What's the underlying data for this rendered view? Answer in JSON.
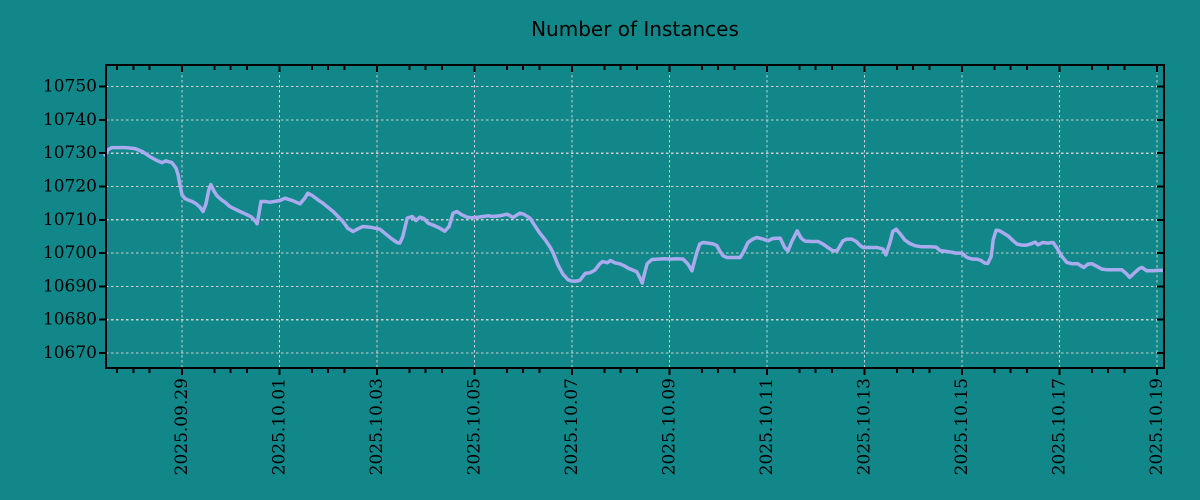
{
  "title": "Number of Instances",
  "colors": {
    "background": "#12878A",
    "line": "#AAAAEE",
    "grid": "#CFCFCF",
    "axis": "#000000",
    "text": "#000000"
  },
  "chart_data": {
    "type": "line",
    "title": "Number of Instances",
    "xlabel": "",
    "ylabel": "",
    "grid": true,
    "legend": "none",
    "x_axis": {
      "unit": "days since 2025-09-27 00:00",
      "lim_days": [
        0.441,
        22.144
      ],
      "major_ticks": [
        {
          "day": 2,
          "label": "2025.09.29"
        },
        {
          "day": 4,
          "label": "2025.10.01"
        },
        {
          "day": 6,
          "label": "2025.10.03"
        },
        {
          "day": 8,
          "label": "2025.10.05"
        },
        {
          "day": 10,
          "label": "2025.10.07"
        },
        {
          "day": 12,
          "label": "2025.10.09"
        },
        {
          "day": 14,
          "label": "2025.10.11"
        },
        {
          "day": 16,
          "label": "2025.10.13"
        },
        {
          "day": 18,
          "label": "2025.10.15"
        },
        {
          "day": 20,
          "label": "2025.10.17"
        },
        {
          "day": 22,
          "label": "2025.10.19"
        }
      ],
      "minor_step_days": 0.3333333
    },
    "y_axis": {
      "lim": [
        10665.5,
        10756.5
      ],
      "ticks": [
        10670,
        10680,
        10690,
        10700,
        10710,
        10720,
        10730,
        10740,
        10750
      ]
    },
    "series": [
      {
        "name": "instances",
        "color": "#AAAAEE",
        "points": [
          [
            0.42,
            10729.5
          ],
          [
            0.48,
            10731.0
          ],
          [
            0.56,
            10731.7
          ],
          [
            0.83,
            10731.7
          ],
          [
            1.04,
            10731.4
          ],
          [
            1.2,
            10730.4
          ],
          [
            1.34,
            10729.0
          ],
          [
            1.49,
            10727.8
          ],
          [
            1.59,
            10727.2
          ],
          [
            1.67,
            10727.7
          ],
          [
            1.79,
            10727.2
          ],
          [
            1.88,
            10725.5
          ],
          [
            1.92,
            10723.5
          ],
          [
            1.96,
            10720.5
          ],
          [
            2.0,
            10717.5
          ],
          [
            2.06,
            10716.4
          ],
          [
            2.12,
            10716.0
          ],
          [
            2.21,
            10715.5
          ],
          [
            2.29,
            10714.8
          ],
          [
            2.37,
            10713.8
          ],
          [
            2.43,
            10712.5
          ],
          [
            2.49,
            10714.7
          ],
          [
            2.55,
            10719.0
          ],
          [
            2.59,
            10720.6
          ],
          [
            2.66,
            10718.5
          ],
          [
            2.72,
            10717.2
          ],
          [
            2.8,
            10716.1
          ],
          [
            2.88,
            10715.3
          ],
          [
            2.98,
            10714.0
          ],
          [
            3.09,
            10713.2
          ],
          [
            3.19,
            10712.5
          ],
          [
            3.31,
            10711.7
          ],
          [
            3.42,
            10710.9
          ],
          [
            3.5,
            10709.7
          ],
          [
            3.54,
            10708.8
          ],
          [
            3.58,
            10712.0
          ],
          [
            3.62,
            10715.5
          ],
          [
            3.7,
            10715.5
          ],
          [
            3.81,
            10715.3
          ],
          [
            4.01,
            10715.8
          ],
          [
            4.11,
            10716.5
          ],
          [
            4.26,
            10715.8
          ],
          [
            4.42,
            10714.8
          ],
          [
            4.52,
            10716.5
          ],
          [
            4.58,
            10718.0
          ],
          [
            4.67,
            10717.3
          ],
          [
            4.79,
            10716.0
          ],
          [
            4.89,
            10715.0
          ],
          [
            4.99,
            10713.8
          ],
          [
            5.1,
            10712.5
          ],
          [
            5.2,
            10711.0
          ],
          [
            5.3,
            10709.5
          ],
          [
            5.4,
            10707.5
          ],
          [
            5.51,
            10706.5
          ],
          [
            5.61,
            10707.3
          ],
          [
            5.71,
            10708.0
          ],
          [
            5.86,
            10707.8
          ],
          [
            5.96,
            10707.5
          ],
          [
            6.06,
            10707.2
          ],
          [
            6.2,
            10705.5
          ],
          [
            6.31,
            10704.2
          ],
          [
            6.41,
            10703.2
          ],
          [
            6.47,
            10703.0
          ],
          [
            6.53,
            10705.0
          ],
          [
            6.62,
            10710.5
          ],
          [
            6.72,
            10711.0
          ],
          [
            6.8,
            10709.8
          ],
          [
            6.88,
            10710.8
          ],
          [
            6.96,
            10710.4
          ],
          [
            7.05,
            10709.0
          ],
          [
            7.17,
            10708.3
          ],
          [
            7.29,
            10707.5
          ],
          [
            7.39,
            10706.6
          ],
          [
            7.48,
            10708.0
          ],
          [
            7.56,
            10712.0
          ],
          [
            7.64,
            10712.5
          ],
          [
            7.74,
            10711.5
          ],
          [
            7.85,
            10710.8
          ],
          [
            7.95,
            10710.6
          ],
          [
            8.07,
            10710.8
          ],
          [
            8.17,
            10711.0
          ],
          [
            8.28,
            10711.2
          ],
          [
            8.38,
            10711.0
          ],
          [
            8.52,
            10711.2
          ],
          [
            8.67,
            10711.7
          ],
          [
            8.79,
            10710.7
          ],
          [
            8.93,
            10712.0
          ],
          [
            9.01,
            10711.7
          ],
          [
            9.14,
            10710.5
          ],
          [
            9.24,
            10708.2
          ],
          [
            9.34,
            10706.0
          ],
          [
            9.45,
            10704.0
          ],
          [
            9.55,
            10701.8
          ],
          [
            9.61,
            10700.2
          ],
          [
            9.71,
            10696.5
          ],
          [
            9.81,
            10693.8
          ],
          [
            9.92,
            10692.0
          ],
          [
            10.0,
            10691.6
          ],
          [
            10.08,
            10691.6
          ],
          [
            10.16,
            10691.8
          ],
          [
            10.27,
            10693.9
          ],
          [
            10.37,
            10694.1
          ],
          [
            10.47,
            10694.9
          ],
          [
            10.57,
            10696.8
          ],
          [
            10.63,
            10697.5
          ],
          [
            10.72,
            10697.1
          ],
          [
            10.79,
            10697.8
          ],
          [
            10.88,
            10697.1
          ],
          [
            10.98,
            10696.8
          ],
          [
            11.07,
            10696.2
          ],
          [
            11.15,
            10695.5
          ],
          [
            11.25,
            10694.9
          ],
          [
            11.33,
            10694.4
          ],
          [
            11.4,
            10692.4
          ],
          [
            11.44,
            10691.0
          ],
          [
            11.48,
            10693.4
          ],
          [
            11.54,
            10696.8
          ],
          [
            11.64,
            10698.1
          ],
          [
            11.76,
            10698.2
          ],
          [
            11.91,
            10698.3
          ],
          [
            12.01,
            10698.2
          ],
          [
            12.15,
            10698.3
          ],
          [
            12.28,
            10698.2
          ],
          [
            12.38,
            10696.7
          ],
          [
            12.46,
            10694.7
          ],
          [
            12.56,
            10700.2
          ],
          [
            12.62,
            10702.7
          ],
          [
            12.69,
            10703.2
          ],
          [
            12.79,
            10703.0
          ],
          [
            12.89,
            10702.8
          ],
          [
            12.97,
            10702.3
          ],
          [
            13.03,
            10700.7
          ],
          [
            13.1,
            10699.2
          ],
          [
            13.18,
            10698.7
          ],
          [
            13.3,
            10698.7
          ],
          [
            13.45,
            10698.7
          ],
          [
            13.53,
            10700.7
          ],
          [
            13.61,
            10703.2
          ],
          [
            13.71,
            10704.2
          ],
          [
            13.79,
            10704.7
          ],
          [
            13.92,
            10704.2
          ],
          [
            14.02,
            10703.7
          ],
          [
            14.12,
            10704.4
          ],
          [
            14.27,
            10704.5
          ],
          [
            14.37,
            10701.5
          ],
          [
            14.43,
            10700.7
          ],
          [
            14.51,
            10703.5
          ],
          [
            14.62,
            10706.7
          ],
          [
            14.7,
            10704.5
          ],
          [
            14.78,
            10703.6
          ],
          [
            14.92,
            10703.5
          ],
          [
            15.05,
            10703.5
          ],
          [
            15.15,
            10702.7
          ],
          [
            15.25,
            10701.7
          ],
          [
            15.35,
            10700.7
          ],
          [
            15.44,
            10700.7
          ],
          [
            15.56,
            10703.7
          ],
          [
            15.64,
            10704.2
          ],
          [
            15.74,
            10704.2
          ],
          [
            15.83,
            10703.5
          ],
          [
            15.91,
            10702.3
          ],
          [
            15.97,
            10701.7
          ],
          [
            16.11,
            10701.7
          ],
          [
            16.26,
            10701.7
          ],
          [
            16.38,
            10701.2
          ],
          [
            16.44,
            10699.5
          ],
          [
            16.52,
            10703.0
          ],
          [
            16.58,
            10706.5
          ],
          [
            16.65,
            10707.2
          ],
          [
            16.73,
            10705.8
          ],
          [
            16.83,
            10703.9
          ],
          [
            16.93,
            10702.9
          ],
          [
            17.04,
            10702.2
          ],
          [
            17.18,
            10701.9
          ],
          [
            17.34,
            10701.9
          ],
          [
            17.47,
            10701.8
          ],
          [
            17.55,
            10700.8
          ],
          [
            17.69,
            10700.5
          ],
          [
            17.82,
            10700.2
          ],
          [
            17.88,
            10700.0
          ],
          [
            18.0,
            10700.0
          ],
          [
            18.1,
            10698.7
          ],
          [
            18.21,
            10698.2
          ],
          [
            18.31,
            10698.2
          ],
          [
            18.39,
            10697.8
          ],
          [
            18.47,
            10697.0
          ],
          [
            18.53,
            10696.9
          ],
          [
            18.6,
            10699.0
          ],
          [
            18.64,
            10704.0
          ],
          [
            18.7,
            10706.9
          ],
          [
            18.76,
            10706.8
          ],
          [
            18.84,
            10706.1
          ],
          [
            18.95,
            10705.1
          ],
          [
            19.05,
            10703.7
          ],
          [
            19.13,
            10702.7
          ],
          [
            19.23,
            10702.4
          ],
          [
            19.33,
            10702.4
          ],
          [
            19.42,
            10702.8
          ],
          [
            19.5,
            10703.3
          ],
          [
            19.56,
            10702.5
          ],
          [
            19.66,
            10703.2
          ],
          [
            19.76,
            10703.0
          ],
          [
            19.87,
            10703.2
          ],
          [
            19.95,
            10701.5
          ],
          [
            20.05,
            10699.0
          ],
          [
            20.15,
            10697.2
          ],
          [
            20.26,
            10696.8
          ],
          [
            20.38,
            10696.8
          ],
          [
            20.44,
            10696.2
          ],
          [
            20.5,
            10695.7
          ],
          [
            20.58,
            10696.7
          ],
          [
            20.67,
            10696.8
          ],
          [
            20.77,
            10696.0
          ],
          [
            20.87,
            10695.2
          ],
          [
            20.99,
            10695.0
          ],
          [
            21.14,
            10695.0
          ],
          [
            21.28,
            10695.0
          ],
          [
            21.38,
            10693.7
          ],
          [
            21.44,
            10692.7
          ],
          [
            21.55,
            10694.2
          ],
          [
            21.63,
            10695.3
          ],
          [
            21.69,
            10695.7
          ],
          [
            21.79,
            10694.7
          ],
          [
            21.92,
            10694.7
          ],
          [
            22.02,
            10694.8
          ],
          [
            22.12,
            10694.8
          ]
        ]
      }
    ]
  }
}
